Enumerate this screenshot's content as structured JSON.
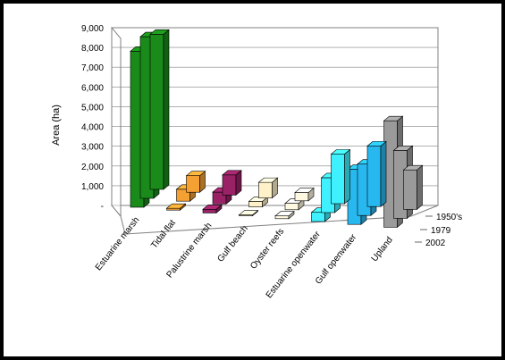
{
  "chart_data": {
    "type": "bar",
    "variant": "3d-column",
    "title": "",
    "ylabel": "Area (ha)",
    "xlabel": "",
    "ylim": [
      0,
      9000
    ],
    "y_ticks": [
      "-",
      "1,000",
      "2,000",
      "3,000",
      "4,000",
      "5,000",
      "6,000",
      "7,000",
      "8,000",
      "9,000"
    ],
    "categories": [
      "Estuarine marsh",
      "Tidal flat",
      "Palustrine marsh",
      "Gulf beach",
      "Oyster reefs",
      "Estuarine openwater",
      "Gulf openwater",
      "Upland"
    ],
    "series": [
      {
        "name": "1950's",
        "values": [
          8500,
          100,
          200,
          50,
          150,
          500,
          3000,
          5800
        ]
      },
      {
        "name": "1979",
        "values": [
          8800,
          650,
          650,
          300,
          350,
          1900,
          2800,
          3700
        ]
      },
      {
        "name": "2002",
        "values": [
          8450,
          900,
          1100,
          850,
          450,
          2700,
          3300,
          2150
        ]
      }
    ],
    "colors": {
      "Estuarine marsh": "#1a8a1a",
      "Tidal flat": "#f5a033",
      "Palustrine marsh": "#992266",
      "Gulf beach": "#fff2c8",
      "Oyster reefs": "#fff8e0",
      "Estuarine openwater": "#3ff0ff",
      "Gulf openwater": "#28b8f0",
      "Upland": "#9a9a9a"
    },
    "grid": true,
    "legend": "none"
  }
}
